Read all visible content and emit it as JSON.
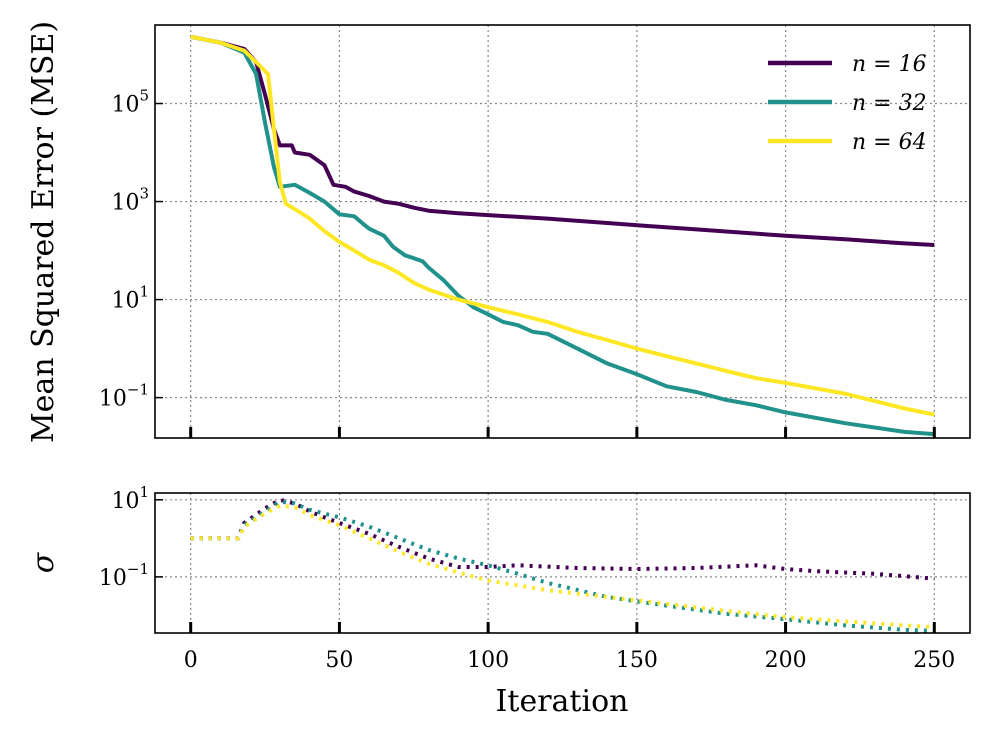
{
  "chart_data": [
    {
      "type": "line",
      "panel": "top",
      "title": "",
      "xlabel": "",
      "ylabel": "Mean Squared Error (MSE)",
      "yscale": "log",
      "xlim": [
        -12,
        262
      ],
      "ylim": [
        0.015,
        4000000
      ],
      "yticks": [
        {
          "value": 0.1,
          "base": "10",
          "exp": "−1"
        },
        {
          "value": 10,
          "base": "10",
          "exp": "1"
        },
        {
          "value": 1000,
          "base": "10",
          "exp": "3"
        },
        {
          "value": 100000,
          "base": "10",
          "exp": "5"
        }
      ],
      "xticks": [
        0,
        50,
        100,
        150,
        200,
        250
      ],
      "grid": true,
      "legend": "top-right",
      "series": [
        {
          "name": "n = 16",
          "n": "16",
          "color": "#440154",
          "points": [
            [
              0,
              2300000
            ],
            [
              10,
              1750000
            ],
            [
              18,
              1300000
            ],
            [
              22,
              700000
            ],
            [
              25,
              150000
            ],
            [
              28,
              30000
            ],
            [
              30,
              14000
            ],
            [
              34,
              14000
            ],
            [
              35,
              10000
            ],
            [
              40,
              9000
            ],
            [
              45,
              5500
            ],
            [
              48,
              2200
            ],
            [
              52,
              2000
            ],
            [
              55,
              1600
            ],
            [
              60,
              1300
            ],
            [
              65,
              1000
            ],
            [
              70,
              900
            ],
            [
              75,
              750
            ],
            [
              80,
              650
            ],
            [
              90,
              580
            ],
            [
              100,
              530
            ],
            [
              120,
              450
            ],
            [
              150,
              330
            ],
            [
              170,
              270
            ],
            [
              200,
              200
            ],
            [
              220,
              170
            ],
            [
              240,
              140
            ],
            [
              250,
              130
            ]
          ]
        },
        {
          "name": "n = 32",
          "n": "32",
          "color": "#21918c",
          "points": [
            [
              0,
              2300000
            ],
            [
              10,
              1750000
            ],
            [
              18,
              1100000
            ],
            [
              22,
              400000
            ],
            [
              25,
              40000
            ],
            [
              28,
              5000
            ],
            [
              30,
              2000
            ],
            [
              35,
              2200
            ],
            [
              40,
              1500
            ],
            [
              45,
              1000
            ],
            [
              50,
              550
            ],
            [
              55,
              500
            ],
            [
              58,
              350
            ],
            [
              60,
              280
            ],
            [
              65,
              200
            ],
            [
              68,
              120
            ],
            [
              72,
              80
            ],
            [
              75,
              70
            ],
            [
              78,
              60
            ],
            [
              80,
              45
            ],
            [
              85,
              25
            ],
            [
              90,
              12
            ],
            [
              95,
              7
            ],
            [
              100,
              5
            ],
            [
              105,
              3.5
            ],
            [
              110,
              3
            ],
            [
              115,
              2.2
            ],
            [
              120,
              2
            ],
            [
              130,
              1
            ],
            [
              140,
              0.5
            ],
            [
              150,
              0.3
            ],
            [
              160,
              0.17
            ],
            [
              170,
              0.13
            ],
            [
              180,
              0.09
            ],
            [
              190,
              0.07
            ],
            [
              200,
              0.05
            ],
            [
              220,
              0.03
            ],
            [
              240,
              0.02
            ],
            [
              250,
              0.018
            ]
          ]
        },
        {
          "name": "n = 64",
          "n": "64",
          "color": "#fde725",
          "points": [
            [
              0,
              2300000
            ],
            [
              10,
              1750000
            ],
            [
              18,
              1200000
            ],
            [
              22,
              700000
            ],
            [
              26,
              400000
            ],
            [
              28,
              30000
            ],
            [
              30,
              2500
            ],
            [
              32,
              900
            ],
            [
              35,
              700
            ],
            [
              40,
              450
            ],
            [
              45,
              250
            ],
            [
              50,
              150
            ],
            [
              55,
              100
            ],
            [
              60,
              65
            ],
            [
              65,
              50
            ],
            [
              70,
              35
            ],
            [
              75,
              22
            ],
            [
              80,
              16
            ],
            [
              90,
              10
            ],
            [
              100,
              7
            ],
            [
              110,
              5
            ],
            [
              120,
              3.5
            ],
            [
              130,
              2.2
            ],
            [
              140,
              1.5
            ],
            [
              150,
              1
            ],
            [
              160,
              0.7
            ],
            [
              170,
              0.5
            ],
            [
              180,
              0.35
            ],
            [
              190,
              0.25
            ],
            [
              200,
              0.2
            ],
            [
              220,
              0.12
            ],
            [
              240,
              0.06
            ],
            [
              250,
              0.045
            ]
          ]
        }
      ]
    },
    {
      "type": "line",
      "panel": "bottom",
      "title": "",
      "xlabel": "Iteration",
      "ylabel": "σ",
      "yscale": "log",
      "xlim": [
        -12,
        262
      ],
      "ylim": [
        0.0035,
        15
      ],
      "yticks": [
        {
          "value": 0.1,
          "base": "10",
          "exp": "−1"
        },
        {
          "value": 10,
          "base": "10",
          "exp": "1"
        }
      ],
      "xticks": [
        0,
        50,
        100,
        150,
        200,
        250
      ],
      "grid": true,
      "line_style": "dotted",
      "series": [
        {
          "name": "n = 16",
          "color": "#440154",
          "points": [
            [
              0,
              1
            ],
            [
              16,
              1
            ],
            [
              18,
              2.5
            ],
            [
              25,
              6
            ],
            [
              30,
              10
            ],
            [
              35,
              8
            ],
            [
              40,
              5
            ],
            [
              45,
              3.5
            ],
            [
              50,
              2.5
            ],
            [
              60,
              1.3
            ],
            [
              70,
              0.6
            ],
            [
              80,
              0.3
            ],
            [
              90,
              0.18
            ],
            [
              100,
              0.18
            ],
            [
              110,
              0.2
            ],
            [
              130,
              0.17
            ],
            [
              150,
              0.16
            ],
            [
              170,
              0.17
            ],
            [
              190,
              0.2
            ],
            [
              200,
              0.16
            ],
            [
              210,
              0.14
            ],
            [
              230,
              0.12
            ],
            [
              250,
              0.09
            ]
          ]
        },
        {
          "name": "n = 32",
          "color": "#21918c",
          "points": [
            [
              0,
              1
            ],
            [
              16,
              1
            ],
            [
              18,
              2.2
            ],
            [
              25,
              5
            ],
            [
              30,
              9
            ],
            [
              35,
              8
            ],
            [
              40,
              5.5
            ],
            [
              50,
              3.5
            ],
            [
              60,
              2
            ],
            [
              70,
              1
            ],
            [
              80,
              0.5
            ],
            [
              90,
              0.3
            ],
            [
              100,
              0.2
            ],
            [
              110,
              0.12
            ],
            [
              120,
              0.07
            ],
            [
              140,
              0.03
            ],
            [
              160,
              0.018
            ],
            [
              180,
              0.011
            ],
            [
              200,
              0.008
            ],
            [
              220,
              0.0055
            ],
            [
              240,
              0.0042
            ],
            [
              250,
              0.004
            ]
          ]
        },
        {
          "name": "n = 64",
          "color": "#fde725",
          "points": [
            [
              0,
              1
            ],
            [
              16,
              1
            ],
            [
              18,
              2
            ],
            [
              25,
              4.5
            ],
            [
              30,
              7
            ],
            [
              35,
              6.5
            ],
            [
              40,
              4
            ],
            [
              50,
              2.2
            ],
            [
              60,
              1
            ],
            [
              70,
              0.45
            ],
            [
              80,
              0.22
            ],
            [
              90,
              0.13
            ],
            [
              100,
              0.08
            ],
            [
              120,
              0.045
            ],
            [
              140,
              0.03
            ],
            [
              160,
              0.02
            ],
            [
              180,
              0.013
            ],
            [
              200,
              0.009
            ],
            [
              220,
              0.007
            ],
            [
              240,
              0.0055
            ],
            [
              250,
              0.005
            ]
          ]
        }
      ]
    }
  ]
}
